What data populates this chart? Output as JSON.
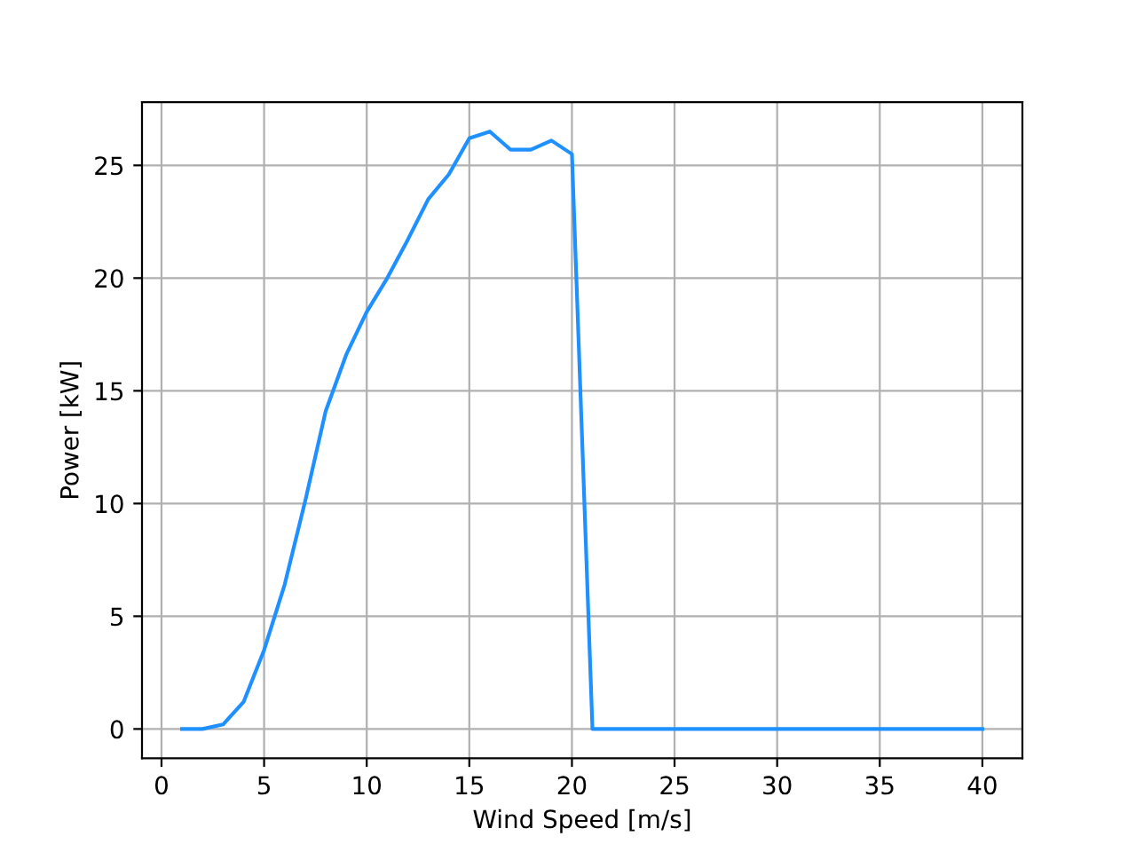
{
  "chart_data": {
    "type": "line",
    "xlabel": "Wind Speed [m/s]",
    "ylabel": "Power [kW]",
    "x": [
      1,
      2,
      3,
      4,
      5,
      6,
      7,
      8,
      9,
      10,
      11,
      12,
      13,
      14,
      15,
      16,
      17,
      18,
      19,
      20,
      21,
      22,
      23,
      24,
      25,
      26,
      27,
      28,
      29,
      30,
      31,
      32,
      33,
      34,
      35,
      36,
      37,
      38,
      39,
      40
    ],
    "series": [
      {
        "color": "#1e90ff",
        "values": [
          0,
          0,
          0.2,
          1.2,
          3.5,
          6.4,
          10.1,
          14.1,
          16.6,
          18.5,
          20.0,
          21.7,
          23.5,
          24.6,
          26.2,
          26.5,
          25.7,
          25.7,
          26.1,
          25.5,
          0,
          0,
          0,
          0,
          0,
          0,
          0,
          0,
          0,
          0,
          0,
          0,
          0,
          0,
          0,
          0,
          0,
          0,
          0,
          0
        ]
      }
    ],
    "xlim": [
      -0.95,
      41.95
    ],
    "ylim": [
      -1.3,
      27.8
    ],
    "xticks": [
      0,
      5,
      10,
      15,
      20,
      25,
      30,
      35,
      40
    ],
    "yticks": [
      0,
      5,
      10,
      15,
      20,
      25
    ],
    "grid": true,
    "marker": "none",
    "line_style": "solid"
  }
}
